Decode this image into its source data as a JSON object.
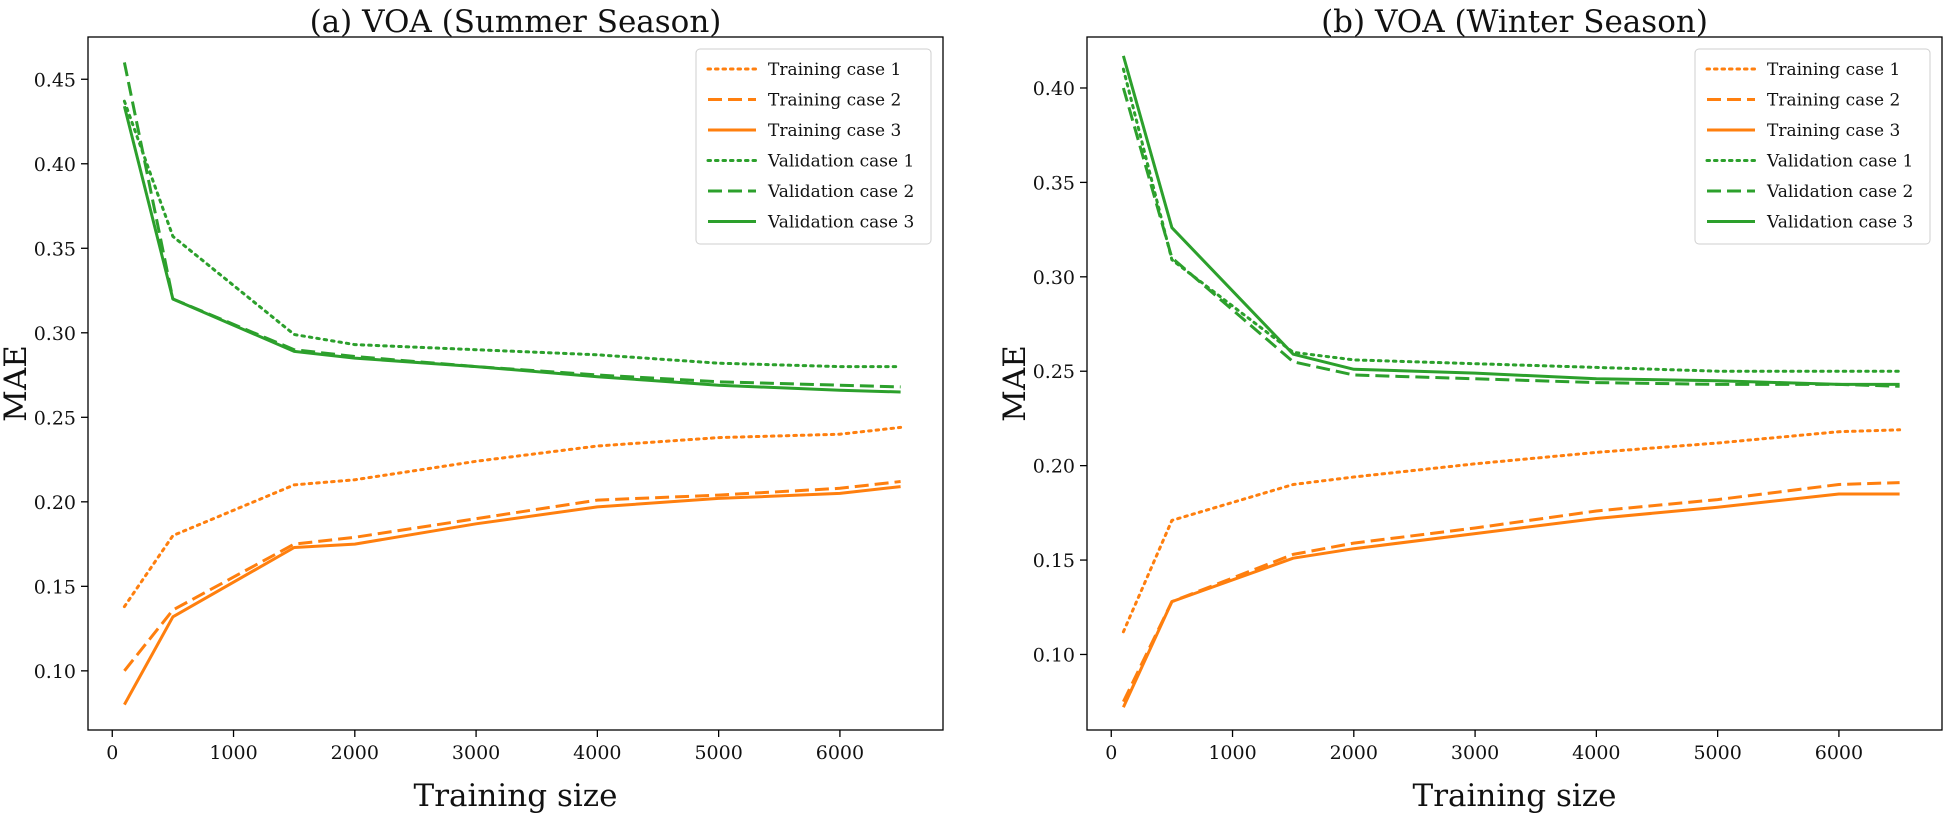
{
  "chart_data": [
    {
      "type": "line",
      "title": "(a) VOA (Summer Season)",
      "xlabel": "Training size",
      "ylabel": "MAE",
      "xlim": [
        -200,
        6850
      ],
      "ylim": [
        0.065,
        0.475
      ],
      "xticks": [
        0,
        1000,
        2000,
        3000,
        4000,
        5000,
        6000
      ],
      "yticks": [
        0.1,
        0.15,
        0.2,
        0.25,
        0.3,
        0.35,
        0.4,
        0.45
      ],
      "xtick_labels": [
        "0",
        "1000",
        "2000",
        "3000",
        "4000",
        "5000",
        "6000"
      ],
      "ytick_labels": [
        "0.10",
        "0.15",
        "0.20",
        "0.25",
        "0.30",
        "0.35",
        "0.40",
        "0.45"
      ],
      "grid": false,
      "legend_position": "top-right",
      "series": [
        {
          "name": "Training case 1",
          "color": "#ff7f0e",
          "dash": "dotted",
          "x": [
            100,
            500,
            1500,
            2000,
            3000,
            4000,
            5000,
            6000,
            6500
          ],
          "y": [
            0.138,
            0.18,
            0.21,
            0.213,
            0.224,
            0.233,
            0.238,
            0.24,
            0.244
          ]
        },
        {
          "name": "Training case 2",
          "color": "#ff7f0e",
          "dash": "dashed",
          "x": [
            100,
            500,
            1500,
            2000,
            3000,
            4000,
            5000,
            6000,
            6500
          ],
          "y": [
            0.1,
            0.136,
            0.175,
            0.179,
            0.19,
            0.201,
            0.204,
            0.208,
            0.212
          ]
        },
        {
          "name": "Training case 3",
          "color": "#ff7f0e",
          "dash": "solid",
          "x": [
            100,
            500,
            1500,
            2000,
            3000,
            4000,
            5000,
            6000,
            6500
          ],
          "y": [
            0.08,
            0.132,
            0.173,
            0.175,
            0.187,
            0.197,
            0.202,
            0.205,
            0.209
          ]
        },
        {
          "name": "Validation case 1",
          "color": "#2ca02c",
          "dash": "dotted",
          "x": [
            100,
            500,
            1500,
            2000,
            3000,
            4000,
            5000,
            6000,
            6500
          ],
          "y": [
            0.437,
            0.357,
            0.299,
            0.293,
            0.29,
            0.287,
            0.282,
            0.28,
            0.28
          ]
        },
        {
          "name": "Validation case 2",
          "color": "#2ca02c",
          "dash": "dashed",
          "x": [
            100,
            500,
            1500,
            2000,
            3000,
            4000,
            5000,
            6000,
            6500
          ],
          "y": [
            0.46,
            0.32,
            0.29,
            0.286,
            0.28,
            0.275,
            0.271,
            0.269,
            0.268
          ]
        },
        {
          "name": "Validation case 3",
          "color": "#2ca02c",
          "dash": "solid",
          "x": [
            100,
            500,
            1500,
            2000,
            3000,
            4000,
            5000,
            6000,
            6500
          ],
          "y": [
            0.434,
            0.32,
            0.289,
            0.285,
            0.28,
            0.274,
            0.269,
            0.266,
            0.265
          ]
        }
      ]
    },
    {
      "type": "line",
      "title": "(b) VOA (Winter Season)",
      "xlabel": "Training size",
      "ylabel": "MAE",
      "xlim": [
        -200,
        6850
      ],
      "ylim": [
        0.06,
        0.427
      ],
      "xticks": [
        0,
        1000,
        2000,
        3000,
        4000,
        5000,
        6000
      ],
      "yticks": [
        0.1,
        0.15,
        0.2,
        0.25,
        0.3,
        0.35,
        0.4
      ],
      "xtick_labels": [
        "0",
        "1000",
        "2000",
        "3000",
        "4000",
        "5000",
        "6000"
      ],
      "ytick_labels": [
        "0.10",
        "0.15",
        "0.20",
        "0.25",
        "0.30",
        "0.35",
        "0.40"
      ],
      "grid": false,
      "legend_position": "top-right",
      "series": [
        {
          "name": "Training case 1",
          "color": "#ff7f0e",
          "dash": "dotted",
          "x": [
            100,
            500,
            1500,
            2000,
            3000,
            4000,
            5000,
            6000,
            6500
          ],
          "y": [
            0.112,
            0.171,
            0.19,
            0.194,
            0.201,
            0.207,
            0.212,
            0.218,
            0.219
          ]
        },
        {
          "name": "Training case 2",
          "color": "#ff7f0e",
          "dash": "dashed",
          "x": [
            100,
            500,
            1500,
            2000,
            3000,
            4000,
            5000,
            6000,
            6500
          ],
          "y": [
            0.075,
            0.128,
            0.153,
            0.159,
            0.167,
            0.176,
            0.182,
            0.19,
            0.191
          ]
        },
        {
          "name": "Training case 3",
          "color": "#ff7f0e",
          "dash": "solid",
          "x": [
            100,
            500,
            1500,
            2000,
            3000,
            4000,
            5000,
            6000,
            6500
          ],
          "y": [
            0.072,
            0.128,
            0.151,
            0.156,
            0.164,
            0.172,
            0.178,
            0.185,
            0.185
          ]
        },
        {
          "name": "Validation case 1",
          "color": "#2ca02c",
          "dash": "dotted",
          "x": [
            100,
            500,
            1500,
            2000,
            3000,
            4000,
            5000,
            6000,
            6500
          ],
          "y": [
            0.41,
            0.309,
            0.26,
            0.256,
            0.254,
            0.252,
            0.25,
            0.25,
            0.25
          ]
        },
        {
          "name": "Validation case 2",
          "color": "#2ca02c",
          "dash": "dashed",
          "x": [
            100,
            500,
            1500,
            2000,
            3000,
            4000,
            5000,
            6000,
            6500
          ],
          "y": [
            0.4,
            0.31,
            0.255,
            0.248,
            0.246,
            0.244,
            0.243,
            0.243,
            0.242
          ]
        },
        {
          "name": "Validation case 3",
          "color": "#2ca02c",
          "dash": "solid",
          "x": [
            100,
            500,
            1500,
            2000,
            3000,
            4000,
            5000,
            6000,
            6500
          ],
          "y": [
            0.417,
            0.326,
            0.259,
            0.251,
            0.249,
            0.246,
            0.245,
            0.243,
            0.243
          ]
        }
      ]
    }
  ]
}
